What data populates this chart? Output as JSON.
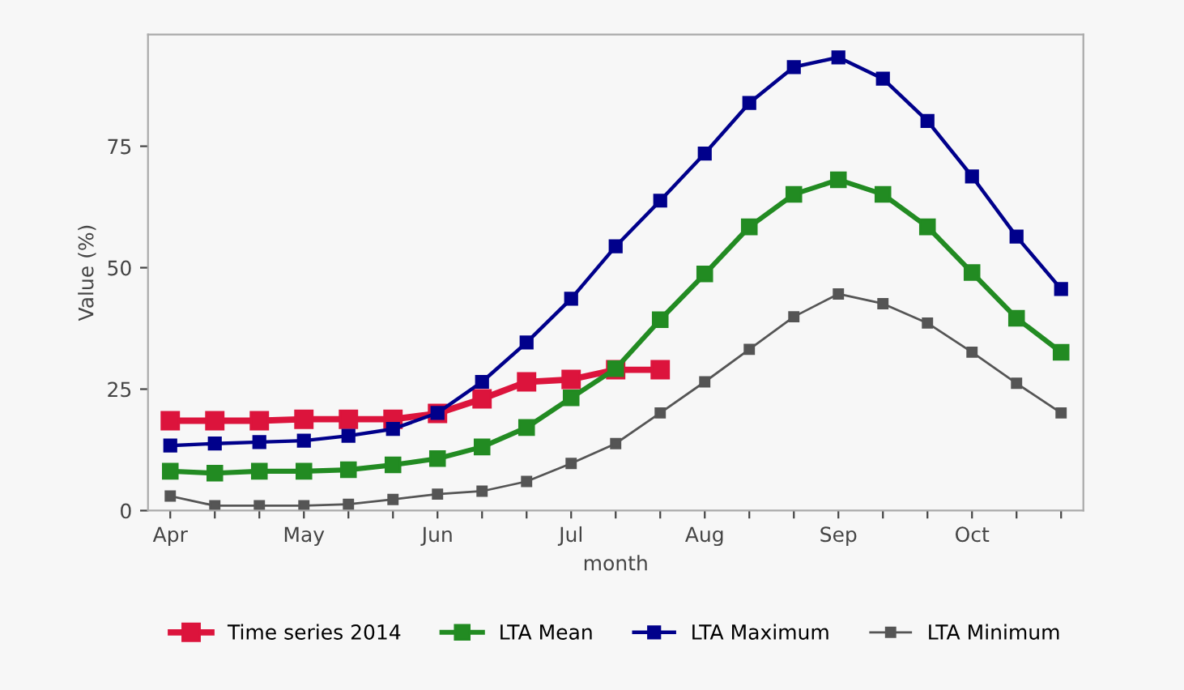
{
  "chart_data": {
    "type": "line",
    "xlabel": "month",
    "ylabel": "Value (%)",
    "categories": [
      "Apr",
      null,
      null,
      "May",
      null,
      null,
      "Jun",
      null,
      null,
      "Jul",
      null,
      null,
      "Aug",
      null,
      null,
      "Sep",
      null,
      null,
      "Oct",
      null,
      null
    ],
    "series": [
      {
        "name": "Time series 2014",
        "color": "#dc143c",
        "values": [
          18.5,
          18.5,
          18.5,
          18.8,
          18.8,
          18.8,
          20,
          23,
          26.5,
          27,
          29,
          29,
          null,
          null,
          null,
          null,
          null,
          null,
          null,
          null,
          null
        ]
      },
      {
        "name": "LTA Mean",
        "color": "#228b22",
        "values": [
          8.1,
          7.7,
          8.1,
          8.1,
          8.4,
          9.4,
          10.7,
          13.1,
          17.1,
          23.2,
          29.2,
          39.3,
          48.7,
          58.4,
          65.1,
          68.1,
          65.1,
          58.4,
          49,
          39.6,
          32.6
        ]
      },
      {
        "name": "LTA Maximum",
        "color": "#00008b",
        "values": [
          13.4,
          13.8,
          14.1,
          14.4,
          15.4,
          16.8,
          20.1,
          26.5,
          34.6,
          43.6,
          54.4,
          63.8,
          73.5,
          83.9,
          91.3,
          93.3,
          88.9,
          80.2,
          68.8,
          56.4,
          45.6
        ]
      },
      {
        "name": "LTA Minimum",
        "color": "#555555",
        "values": [
          3.0,
          1.0,
          1.0,
          1.0,
          1.3,
          2.3,
          3.4,
          4.0,
          6.0,
          9.7,
          13.8,
          20.1,
          26.5,
          33.2,
          39.9,
          44.6,
          42.6,
          38.6,
          32.6,
          26.2,
          20.1
        ]
      }
    ],
    "ylim": [
      0,
      98
    ],
    "yticks": [
      0,
      25,
      50,
      75
    ],
    "marker": "square",
    "line_style": "solid",
    "grid": false,
    "legend": "bottom"
  }
}
